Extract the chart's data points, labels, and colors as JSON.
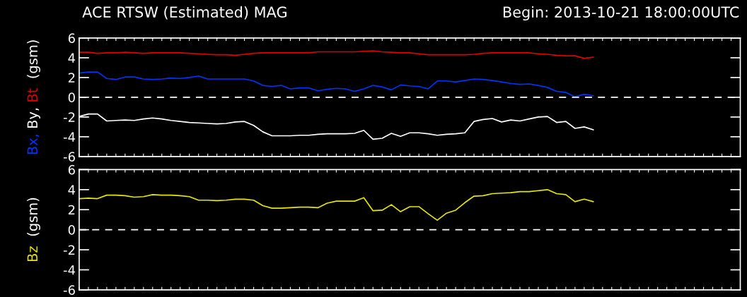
{
  "chart_data": [
    {
      "type": "line",
      "title": "ACE RTSW (Estimated) MAG",
      "subtitle": "Begin: 2013-10-21 18:00:00UTC",
      "ylabel": "(gsm)",
      "categories": [
        null,
        null,
        null,
        null,
        null,
        null,
        null,
        null,
        null,
        null,
        null,
        null,
        null,
        null,
        null,
        null,
        null,
        null,
        null,
        null,
        null,
        null,
        null,
        null,
        null,
        null,
        null,
        null,
        null,
        null,
        null,
        null,
        null,
        null,
        null,
        null,
        null,
        null,
        null,
        null,
        null,
        null,
        null,
        null,
        null,
        null,
        null,
        null,
        null,
        null,
        null,
        null,
        null,
        null,
        null,
        null,
        null,
        null,
        null,
        null,
        null,
        null,
        null,
        null,
        null,
        null,
        null,
        null,
        null,
        null,
        null,
        null,
        null
      ],
      "series": [
        {
          "name": "Bx,",
          "color": "#0033ff",
          "values": [
            2.45,
            2.55,
            2.55,
            1.9,
            1.8,
            2.05,
            2.05,
            1.85,
            1.8,
            1.85,
            1.95,
            1.9,
            2.0,
            2.15,
            1.85,
            1.85,
            1.85,
            1.85,
            1.85,
            1.65,
            1.2,
            1.1,
            1.2,
            0.85,
            0.95,
            0.95,
            0.65,
            0.8,
            0.9,
            0.85,
            0.6,
            0.85,
            1.2,
            1.05,
            0.75,
            1.25,
            1.15,
            1.1,
            0.85,
            1.65,
            1.65,
            1.55,
            1.7,
            1.85,
            1.8,
            1.7,
            1.55,
            1.4,
            1.3,
            1.35,
            1.2,
            1.0,
            0.6,
            0.5,
            0.05,
            0.3,
            0.15,
            null,
            null,
            null,
            null,
            null,
            null,
            null,
            null,
            null,
            null,
            null,
            null,
            null,
            null,
            null,
            null
          ]
        },
        {
          "name": "By,",
          "color": "#ffffff",
          "values": [
            -1.95,
            -1.7,
            -1.7,
            -2.4,
            -2.35,
            -2.3,
            -2.35,
            -2.2,
            -2.1,
            -2.2,
            -2.35,
            -2.45,
            -2.55,
            -2.6,
            -2.65,
            -2.7,
            -2.65,
            -2.5,
            -2.45,
            -2.85,
            -3.5,
            -3.9,
            -3.9,
            -3.9,
            -3.85,
            -3.85,
            -3.75,
            -3.7,
            -3.7,
            -3.7,
            -3.65,
            -3.35,
            -4.25,
            -4.15,
            -3.65,
            -3.95,
            -3.6,
            -3.6,
            -3.7,
            -3.85,
            -3.75,
            -3.7,
            -3.6,
            -2.45,
            -2.25,
            -2.15,
            -2.5,
            -2.3,
            -2.4,
            -2.2,
            -2.0,
            -1.95,
            -2.55,
            -2.45,
            -3.15,
            -3.0,
            -3.3,
            null,
            null,
            null,
            null,
            null,
            null,
            null,
            null,
            null,
            null,
            null,
            null,
            null,
            null,
            null,
            null
          ]
        },
        {
          "name": "Bt",
          "color": "#e00000",
          "values": [
            4.55,
            4.55,
            4.45,
            4.5,
            4.5,
            4.55,
            4.5,
            4.45,
            4.5,
            4.5,
            4.5,
            4.5,
            4.45,
            4.4,
            4.35,
            4.3,
            4.3,
            4.25,
            4.35,
            4.45,
            4.5,
            4.5,
            4.5,
            4.5,
            4.5,
            4.5,
            4.6,
            4.6,
            4.6,
            4.6,
            4.6,
            4.65,
            4.7,
            4.6,
            4.55,
            4.5,
            4.5,
            4.4,
            4.3,
            4.3,
            4.3,
            4.3,
            4.3,
            4.35,
            4.45,
            4.5,
            4.5,
            4.5,
            4.5,
            4.5,
            4.4,
            4.35,
            4.25,
            4.2,
            4.2,
            3.95,
            4.05,
            null,
            null,
            null,
            null,
            null,
            null,
            null,
            null,
            null,
            null,
            null,
            null,
            null,
            null,
            null,
            null
          ]
        }
      ],
      "ylim": [
        -6,
        6
      ],
      "yticks": [
        -6,
        -4,
        -2,
        0,
        2,
        4,
        6
      ],
      "tick_labels": "y",
      "grid": false,
      "legend": "left",
      "line_style": "solid",
      "marker": "none",
      "ref_lines": [
        {
          "axis": "y",
          "value": 0,
          "color": "#ffffff",
          "line_style": "dashed"
        }
      ]
    },
    {
      "type": "line",
      "ylabel": "(gsm)",
      "categories": [
        null,
        null,
        null,
        null,
        null,
        null,
        null,
        null,
        null,
        null,
        null,
        null,
        null,
        null,
        null,
        null,
        null,
        null,
        null,
        null,
        null,
        null,
        null,
        null,
        null,
        null,
        null,
        null,
        null,
        null,
        null,
        null,
        null,
        null,
        null,
        null,
        null,
        null,
        null,
        null,
        null,
        null,
        null,
        null,
        null,
        null,
        null,
        null,
        null,
        null,
        null,
        null,
        null,
        null,
        null,
        null,
        null,
        null,
        null,
        null,
        null,
        null,
        null,
        null,
        null,
        null,
        null,
        null,
        null,
        null,
        null,
        null,
        null
      ],
      "series": [
        {
          "name": "Bz",
          "color": "#e6e600",
          "values": [
            3.1,
            3.15,
            3.1,
            3.45,
            3.45,
            3.4,
            3.25,
            3.3,
            3.5,
            3.45,
            3.45,
            3.4,
            3.3,
            2.95,
            2.95,
            2.9,
            2.95,
            3.05,
            3.05,
            2.95,
            2.4,
            2.15,
            2.15,
            2.2,
            2.25,
            2.25,
            2.2,
            2.65,
            2.85,
            2.85,
            2.85,
            3.2,
            1.9,
            1.95,
            2.5,
            1.8,
            2.3,
            2.3,
            1.6,
            0.95,
            1.65,
            1.95,
            2.7,
            3.35,
            3.4,
            3.6,
            3.65,
            3.7,
            3.8,
            3.8,
            3.9,
            4.0,
            3.6,
            3.5,
            2.8,
            3.05,
            2.8,
            null,
            null,
            null,
            null,
            null,
            null,
            null,
            null,
            null,
            null,
            null,
            null,
            null,
            null,
            null,
            null
          ]
        }
      ],
      "ylim": [
        -6,
        6
      ],
      "yticks": [
        -6,
        -4,
        -2,
        0,
        2,
        4,
        6
      ],
      "tick_labels": "y",
      "grid": false,
      "legend": "left",
      "line_style": "solid",
      "marker": "none",
      "ref_lines": [
        {
          "axis": "y",
          "value": 0,
          "color": "#ffffff",
          "line_style": "dashed"
        }
      ]
    }
  ]
}
